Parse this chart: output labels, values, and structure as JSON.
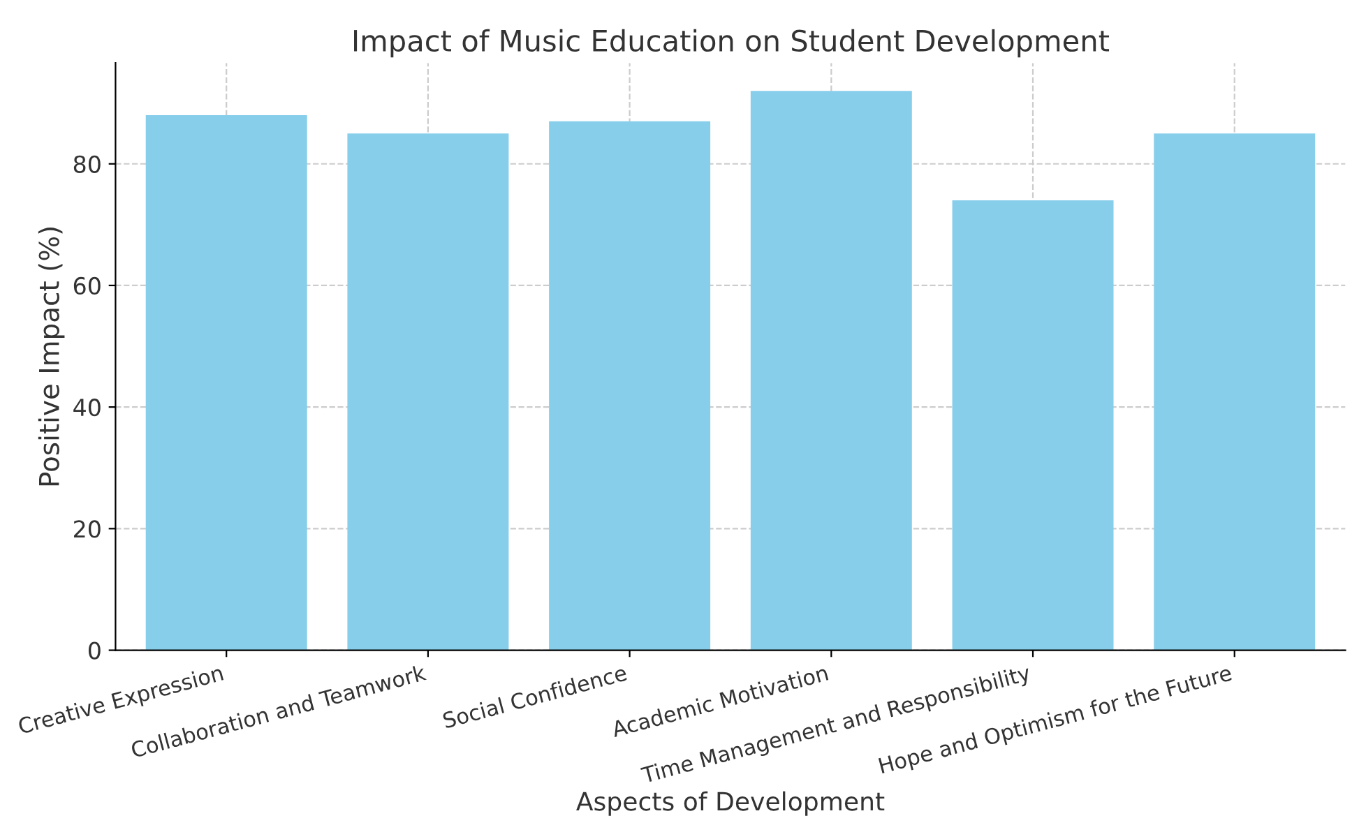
{
  "chart_data": {
    "type": "bar",
    "title": "Impact of Music Education on Student Development",
    "xlabel": "Aspects of Development",
    "ylabel": "Positive Impact (%)",
    "categories": [
      "Creative Expression",
      "Collaboration and Teamwork",
      "Social Confidence",
      "Academic Motivation",
      "Time Management and Responsibility",
      "Hope and Optimism for the Future"
    ],
    "values": [
      88,
      85,
      87,
      92,
      74,
      85
    ],
    "color": "#87ceeb",
    "ylim": [
      0,
      96.6
    ],
    "yticks": [
      0,
      20,
      40,
      60,
      80
    ],
    "grid": true
  }
}
